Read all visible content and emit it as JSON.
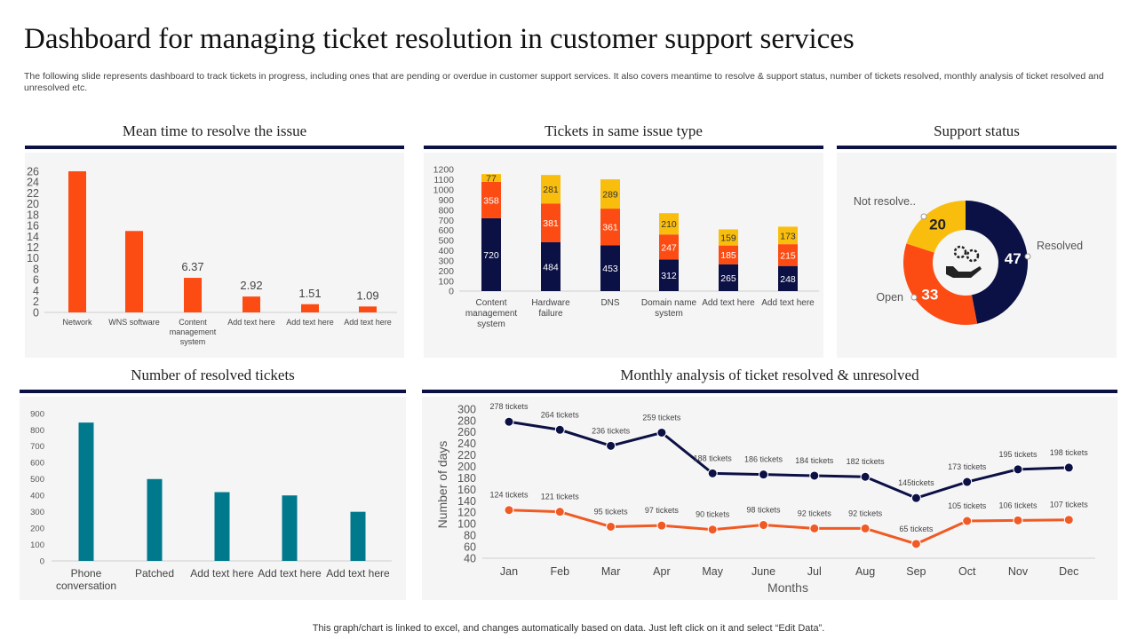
{
  "title": "Dashboard for managing ticket resolution in customer support services",
  "description": "The following slide represents dashboard to track tickets in progress, including ones that are pending or overdue in customer support services. It also covers meantime to resolve & support status, number of tickets resolved, monthly analysis of ticket resolved and unresolved etc.",
  "footer": "This graph/chart is linked to excel,  and changes automatically based on data. Just left click on it and select “Edit Data”.",
  "colors": {
    "navy": "#0b1045",
    "orange": "#fc4c13",
    "yellow": "#f9be0d",
    "teal": "#00798c",
    "line_orange": "#f05a24"
  },
  "center_icon": "hand-gears-icon",
  "chart_data": [
    {
      "type": "bar",
      "title": "Mean time to resolve the issue",
      "categories": [
        "Network",
        "WNS software",
        "Content management system",
        "Add text here",
        "Add text here",
        "Add text here"
      ],
      "values": [
        26,
        15,
        6.37,
        2.92,
        1.51,
        1.09
      ],
      "data_labels": [
        "",
        "",
        "6.37",
        "2.92",
        "1.51",
        "1.09"
      ],
      "ylim": [
        0,
        26
      ],
      "yticks": [
        0,
        2,
        4,
        6,
        8,
        10,
        12,
        14,
        16,
        18,
        20,
        22,
        24,
        26
      ],
      "color": "#fc4c13",
      "grid": false
    },
    {
      "type": "bar",
      "stacked": true,
      "title": "Tickets in same issue type",
      "categories": [
        "Content management system",
        "Hardware failure",
        "DNS",
        "Domain name system",
        "Add text here",
        "Add text here"
      ],
      "series": [
        {
          "values": [
            720,
            484,
            453,
            312,
            265,
            248
          ],
          "color": "#0b1045"
        },
        {
          "values": [
            358,
            381,
            361,
            247,
            185,
            215
          ],
          "color": "#fc4c13"
        },
        {
          "values": [
            77,
            281,
            289,
            210,
            159,
            173
          ],
          "color": "#f9be0d"
        }
      ],
      "ylim": [
        0,
        1200
      ],
      "yticks": [
        0,
        100,
        200,
        300,
        400,
        500,
        600,
        700,
        800,
        900,
        1000,
        1100,
        1200
      ],
      "grid": false
    },
    {
      "type": "pie",
      "donut": true,
      "title": "Support status",
      "slices": [
        {
          "label": "Resolved",
          "value": 47,
          "color": "#0b1045"
        },
        {
          "label": "Open",
          "value": 33,
          "color": "#fc4c13"
        },
        {
          "label": "Not resolve..",
          "value": 20,
          "color": "#f9be0d"
        }
      ]
    },
    {
      "type": "bar",
      "title": "Number of resolved tickets",
      "categories": [
        "Phone conversation",
        "Patched",
        "Add text here",
        "Add text here",
        "Add text here"
      ],
      "values": [
        845,
        500,
        420,
        400,
        300
      ],
      "ylim": [
        0,
        900
      ],
      "yticks": [
        0,
        100,
        200,
        300,
        400,
        500,
        600,
        700,
        800,
        900
      ],
      "color": "#00798c",
      "grid": false
    },
    {
      "type": "line",
      "title": "Monthly analysis of ticket resolved & unresolved",
      "xlabel": "Months",
      "ylabel": "Number of days",
      "categories": [
        "Jan",
        "Feb",
        "Mar",
        "Apr",
        "May",
        "June",
        "Jul",
        "Aug",
        "Sep",
        "Oct",
        "Nov",
        "Dec"
      ],
      "series": [
        {
          "values": [
            278,
            264,
            236,
            259,
            188,
            186,
            184,
            182,
            145,
            173,
            195,
            198
          ],
          "labels": [
            "278 tickets",
            "264 tickets",
            "236 tickets",
            "259 tickets",
            "188 tickets",
            "186 tickets",
            "184 tickets",
            "182 tickets",
            "145tickets",
            "173 tickets",
            "195 tickets",
            "198 tickets"
          ],
          "color": "#0b1045"
        },
        {
          "values": [
            124,
            121,
            95,
            97,
            90,
            98,
            92,
            92,
            65,
            105,
            106,
            107
          ],
          "labels": [
            "124 tickets",
            "121 tickets",
            "95 tickets",
            "97 tickets",
            "90 tickets",
            "98 tickets",
            "92 tickets",
            "92 tickets",
            "65 tickets",
            "105 tickets",
            "106 tickets",
            "107 tickets"
          ],
          "color": "#f05a24"
        }
      ],
      "ylim": [
        40,
        300
      ],
      "yticks": [
        40,
        60,
        80,
        100,
        120,
        140,
        160,
        180,
        200,
        220,
        240,
        260,
        280,
        300
      ],
      "grid": false
    }
  ]
}
